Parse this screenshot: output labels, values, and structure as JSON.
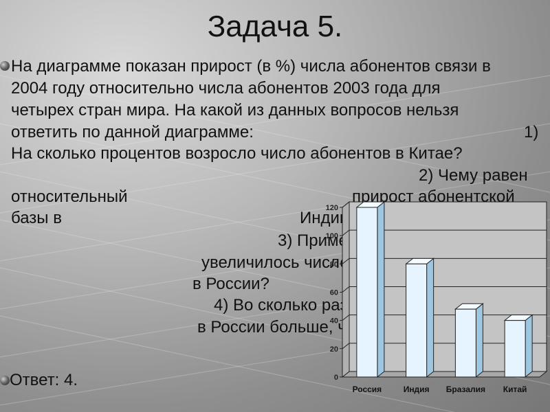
{
  "slide": {
    "title": "Задача 5.",
    "question_lines": [
      "На диаграмме показан прирост (в %) числа абонентов связи в",
      "2004 году относительно числа абонентов 2003 года для",
      "четырех стран мира. На какой из данных вопросов нельзя",
      "ответить по данной диаграмме:",
      "1)",
      "На сколько процентов возросло число абонентов в Китае?",
      "2) Чему равен",
      "относительный",
      "прирост абонентской",
      "базы в",
      "Индии?",
      "3) Примерно во сколько раз",
      "увеличилось число абонентов",
      "в России?",
      "4) Во сколько раз число абонентов",
      "в России больше, чем в Бразилии?"
    ],
    "answer": "Ответ: 4."
  },
  "chart_data": {
    "type": "bar",
    "categories": [
      "Россия",
      "Индия",
      "Бразалия",
      "Китай"
    ],
    "values": [
      120,
      80,
      48,
      40
    ],
    "ylim": [
      0,
      120
    ],
    "yticks": [
      0,
      20,
      40,
      60,
      80,
      100,
      120
    ],
    "grid": true,
    "bar_color": "#e6f4ff",
    "bar_side_color": "#9dc6e0",
    "bar_top_color": "#f4fbff"
  }
}
